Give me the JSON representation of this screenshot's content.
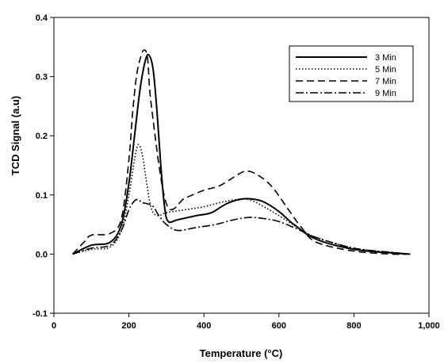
{
  "chart_data": {
    "type": "line",
    "xlabel": "Temperature (°C)",
    "ylabel": "TCD Signal (a.u)",
    "xlim": [
      0,
      1000
    ],
    "ylim": [
      -0.1,
      0.4
    ],
    "x_ticks": [
      "0",
      "200",
      "400",
      "600",
      "800",
      "1,000"
    ],
    "y_ticks": [
      "-0.1",
      "0.0",
      "0.1",
      "0.2",
      "0.3",
      "0.4"
    ],
    "grid": false,
    "legend_position": "top-right",
    "series": [
      {
        "name": "3 Min",
        "style": "solid",
        "color": "#000000",
        "x": [
          50,
          100,
          150,
          180,
          200,
          215,
          230,
          245,
          255,
          265,
          275,
          285,
          295,
          305,
          330,
          380,
          420,
          460,
          500,
          530,
          560,
          600,
          640,
          700,
          800,
          900,
          950
        ],
        "y": [
          0.0,
          0.015,
          0.02,
          0.05,
          0.12,
          0.2,
          0.28,
          0.33,
          0.335,
          0.31,
          0.24,
          0.15,
          0.08,
          0.055,
          0.058,
          0.065,
          0.07,
          0.085,
          0.093,
          0.093,
          0.088,
          0.072,
          0.05,
          0.025,
          0.008,
          0.002,
          0.0
        ]
      },
      {
        "name": "5 Min",
        "style": "dotted",
        "color": "#000000",
        "x": [
          50,
          100,
          150,
          180,
          200,
          215,
          225,
          235,
          245,
          255,
          265,
          280,
          300,
          350,
          400,
          450,
          500,
          530,
          560,
          600,
          650,
          700,
          800,
          900,
          950
        ],
        "y": [
          0.0,
          0.008,
          0.012,
          0.04,
          0.1,
          0.16,
          0.185,
          0.17,
          0.13,
          0.09,
          0.07,
          0.065,
          0.07,
          0.075,
          0.08,
          0.088,
          0.093,
          0.09,
          0.08,
          0.065,
          0.045,
          0.028,
          0.01,
          0.003,
          0.0
        ]
      },
      {
        "name": "7 Min",
        "style": "dashed",
        "color": "#000000",
        "x": [
          50,
          80,
          100,
          150,
          180,
          200,
          210,
          220,
          230,
          240,
          250,
          260,
          300,
          350,
          400,
          440,
          480,
          510,
          540,
          580,
          620,
          660,
          700,
          800,
          900,
          950
        ],
        "y": [
          0.0,
          0.02,
          0.032,
          0.035,
          0.06,
          0.16,
          0.24,
          0.3,
          0.33,
          0.345,
          0.33,
          0.25,
          0.085,
          0.095,
          0.108,
          0.115,
          0.13,
          0.14,
          0.135,
          0.115,
          0.08,
          0.045,
          0.02,
          0.005,
          0.0,
          0.0
        ]
      },
      {
        "name": "9 Min",
        "style": "dashdot",
        "color": "#000000",
        "x": [
          50,
          100,
          150,
          180,
          200,
          215,
          225,
          235,
          250,
          265,
          280,
          300,
          330,
          380,
          430,
          480,
          520,
          560,
          600,
          650,
          700,
          800,
          900,
          950
        ],
        "y": [
          0.0,
          0.01,
          0.015,
          0.04,
          0.075,
          0.09,
          0.092,
          0.087,
          0.085,
          0.08,
          0.065,
          0.05,
          0.04,
          0.045,
          0.05,
          0.058,
          0.062,
          0.06,
          0.055,
          0.042,
          0.028,
          0.01,
          0.003,
          0.0
        ]
      }
    ]
  }
}
